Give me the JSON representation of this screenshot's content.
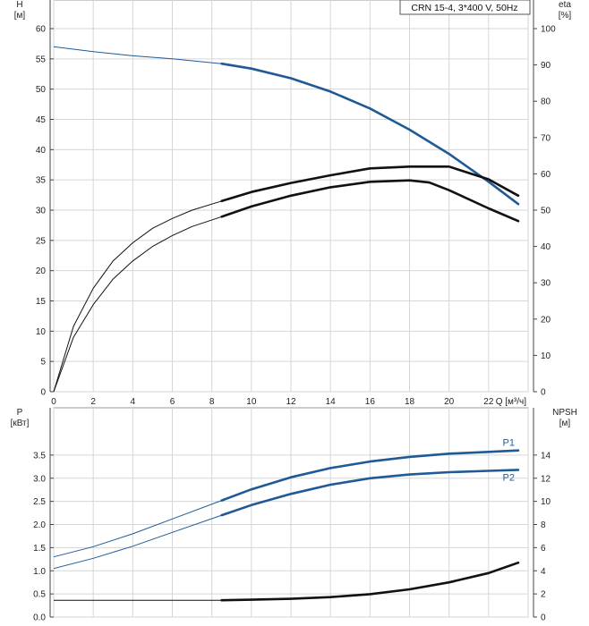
{
  "chart_data": [
    {
      "type": "line",
      "title": "CRN 15-4, 3*400 V, 50Hz",
      "xlabel": "Q [м³/ч]",
      "ylabel": "H\n[м]",
      "ylabel_right": "eta\n[%]",
      "xlim": [
        0,
        24
      ],
      "ylim": [
        0,
        60
      ],
      "ylim_right": [
        0,
        100
      ],
      "x_ticks": [
        "0",
        "2",
        "4",
        "6",
        "8",
        "10",
        "12",
        "14",
        "16",
        "18",
        "20",
        "22"
      ],
      "y_ticks": [
        "0",
        "5",
        "10",
        "15",
        "20",
        "25",
        "30",
        "35",
        "40",
        "45",
        "50",
        "55",
        "60"
      ],
      "y_ticks_right": [
        "0",
        "10",
        "20",
        "30",
        "40",
        "50",
        "60",
        "70",
        "80",
        "90",
        "100"
      ],
      "grid": true,
      "series": [
        {
          "axis": "left",
          "color": "#1f5a96",
          "x": [
            0,
            2,
            4,
            6,
            8.5,
            10,
            12,
            14,
            16,
            18,
            20,
            22,
            23.5
          ],
          "y": [
            57,
            56.2,
            55.5,
            55,
            54.2,
            53.4,
            51.8,
            49.6,
            46.8,
            43.3,
            39.3,
            34.7,
            31
          ]
        },
        {
          "axis": "right",
          "color": "#111111",
          "x": [
            0,
            1,
            2,
            3,
            4,
            5,
            6,
            7,
            8.5,
            10,
            12,
            14,
            16,
            18,
            19,
            20,
            22,
            23.5
          ],
          "y": [
            0,
            15,
            24,
            31,
            36,
            40,
            43,
            45.5,
            48.2,
            51,
            54,
            56.3,
            57.8,
            58.2,
            57.6,
            55.5,
            50.5,
            47
          ]
        },
        {
          "axis": "right",
          "color": "#111111",
          "x": [
            0,
            1,
            2,
            3,
            4,
            5,
            6,
            7,
            8.5,
            10,
            12,
            14,
            16,
            18,
            20,
            22,
            23.5
          ],
          "y": [
            0,
            18,
            28.5,
            36,
            41,
            45,
            47.7,
            50,
            52.5,
            55,
            57.5,
            59.6,
            61.5,
            62,
            62,
            58.5,
            54
          ]
        }
      ]
    },
    {
      "type": "line",
      "xlabel": "",
      "ylabel": "P\n[кВт]",
      "ylabel_right": "NPSH\n[м]",
      "xlim": [
        0,
        24
      ],
      "ylim": [
        0,
        4
      ],
      "ylim_right": [
        0,
        16
      ],
      "y_ticks": [
        "0.0",
        "0.5",
        "1.0",
        "1.5",
        "2.0",
        "2.5",
        "3.0",
        "3.5"
      ],
      "y_ticks_right": [
        "0",
        "2",
        "4",
        "6",
        "8",
        "10",
        "12",
        "14"
      ],
      "grid": true,
      "series": [
        {
          "name": "P1",
          "axis": "left",
          "color": "#1f5a96",
          "x": [
            0,
            2,
            4,
            6,
            8.5,
            10,
            12,
            14,
            16,
            18,
            20,
            22,
            23.5
          ],
          "y": [
            1.3,
            1.52,
            1.8,
            2.12,
            2.52,
            2.76,
            3.02,
            3.22,
            3.36,
            3.46,
            3.53,
            3.57,
            3.6
          ]
        },
        {
          "name": "P2",
          "axis": "left",
          "color": "#1f5a96",
          "x": [
            0,
            2,
            4,
            6,
            8.5,
            10,
            12,
            14,
            16,
            18,
            20,
            22,
            23.5
          ],
          "y": [
            1.05,
            1.27,
            1.53,
            1.83,
            2.2,
            2.42,
            2.66,
            2.86,
            3.0,
            3.08,
            3.13,
            3.16,
            3.18
          ]
        },
        {
          "axis": "right",
          "color": "#111111",
          "x": [
            0,
            2,
            4,
            6,
            8.5,
            10,
            12,
            14,
            16,
            18,
            20,
            22,
            23.5
          ],
          "y": [
            1.45,
            1.45,
            1.45,
            1.45,
            1.45,
            1.5,
            1.58,
            1.72,
            1.98,
            2.4,
            3.0,
            3.8,
            4.7
          ]
        }
      ]
    }
  ]
}
